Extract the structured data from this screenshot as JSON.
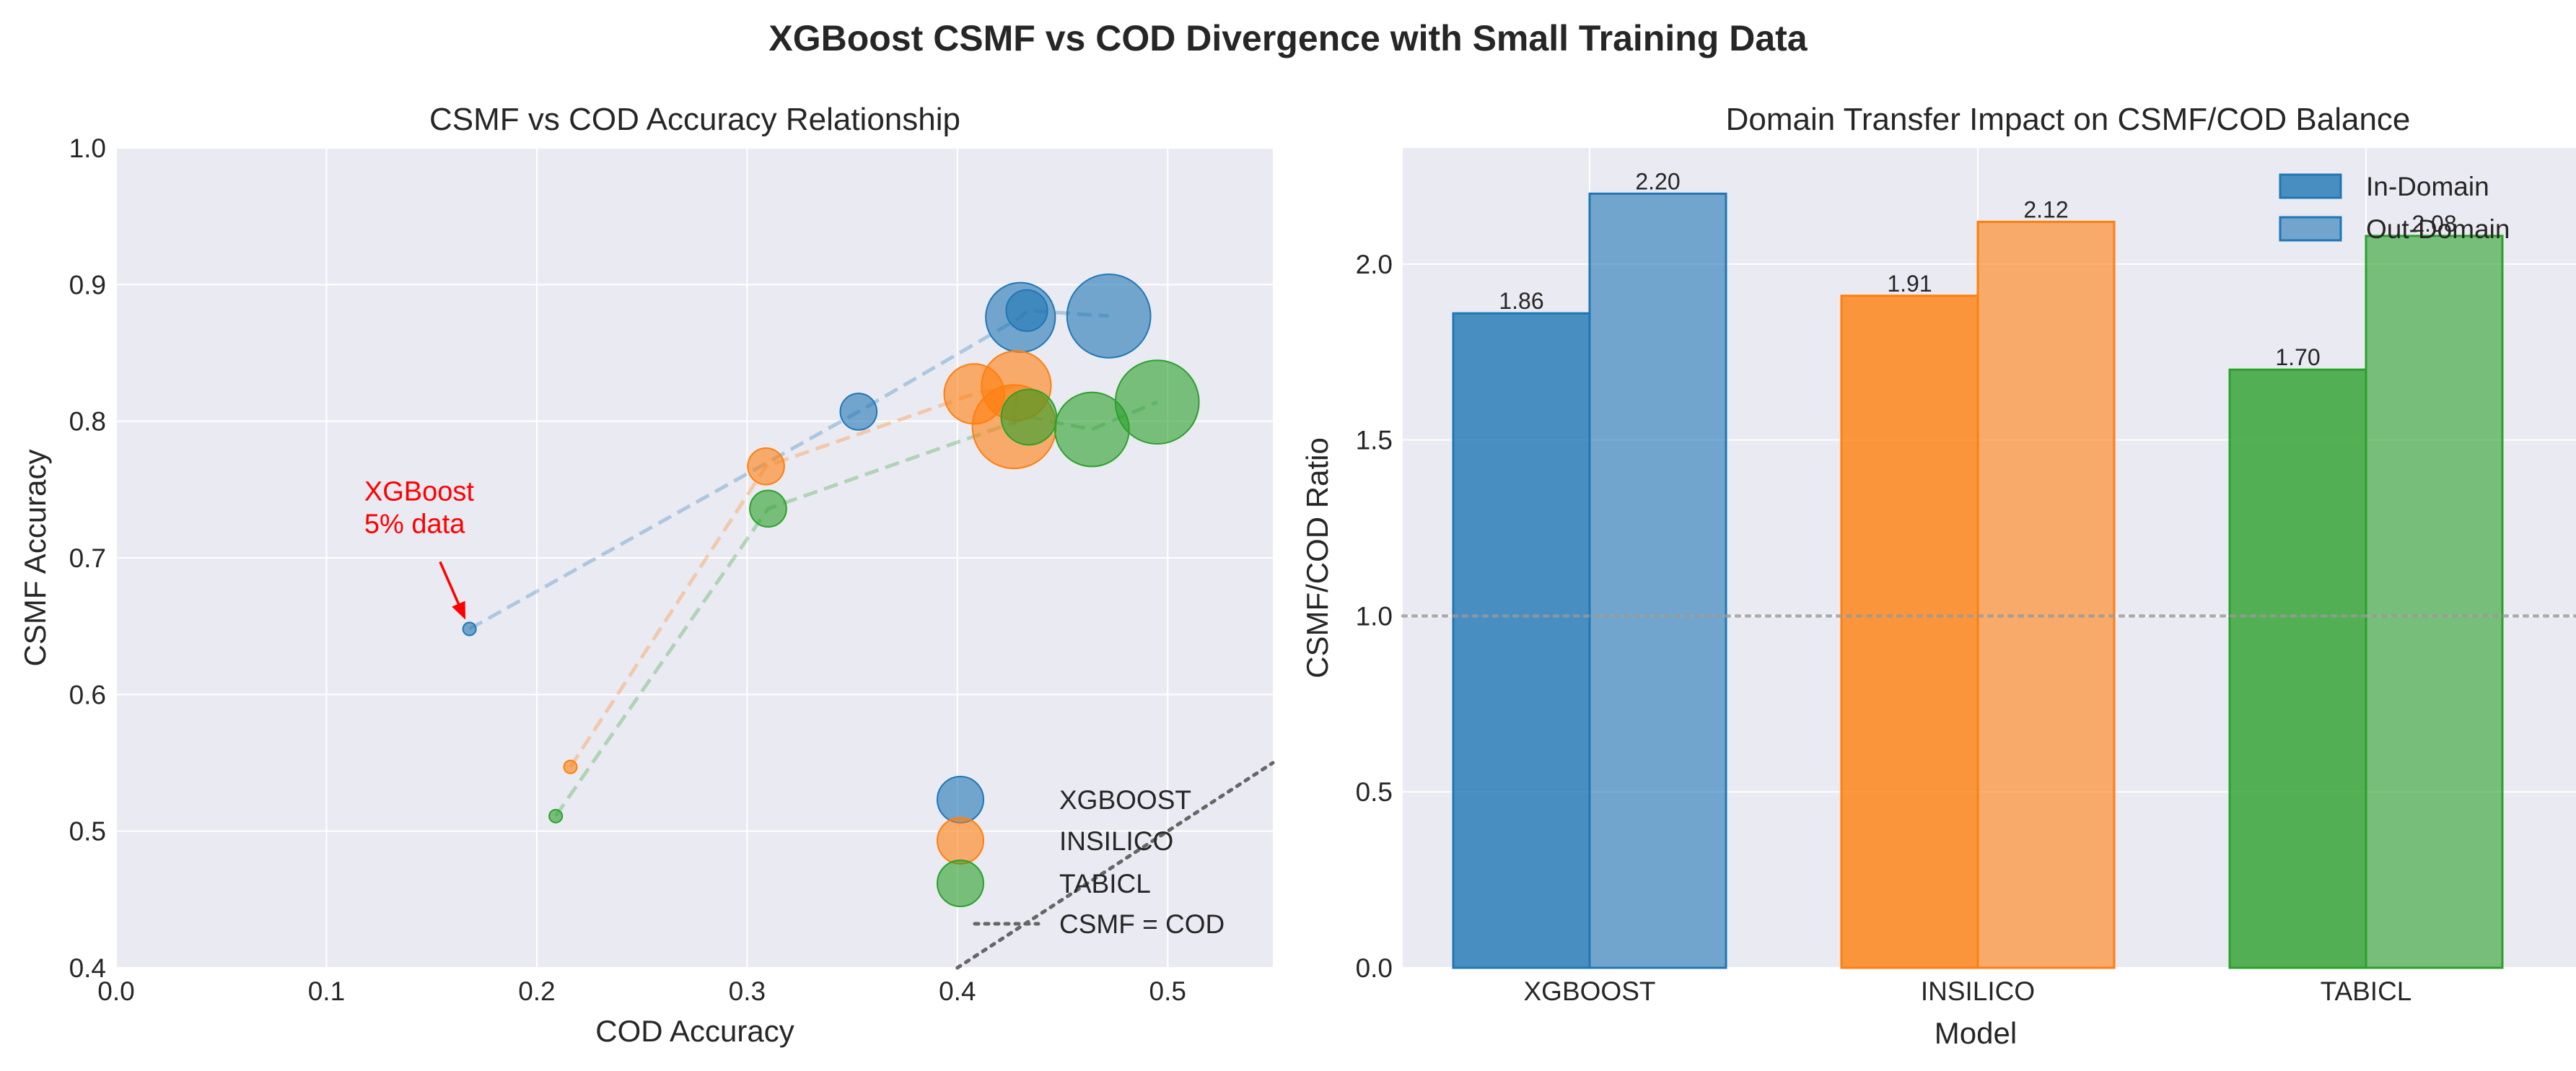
{
  "suptitle": "XGBoost CSMF vs COD Divergence with Small Training Data",
  "chart_data": [
    {
      "type": "scatter",
      "title": "CSMF vs COD Accuracy Relationship",
      "xlabel": "COD Accuracy",
      "ylabel": "CSMF Accuracy",
      "xlim": [
        0,
        0.55
      ],
      "ylim": [
        0.4,
        1.0
      ],
      "xticks": [
        "0.0",
        "0.1",
        "0.2",
        "0.3",
        "0.4",
        "0.5"
      ],
      "yticks": [
        "0.4",
        "0.5",
        "0.6",
        "0.7",
        "0.8",
        "0.9",
        "1.0"
      ],
      "grid": true,
      "legend_position": "lower-right",
      "marker_size_note": "",
      "series": [
        {
          "name": "XGBOOST",
          "color": "#1f77b4",
          "points": [
            {
              "x": 0.168,
              "y": 0.648,
              "size": 1
            },
            {
              "x": 0.353,
              "y": 0.807,
              "size": 2
            },
            {
              "x": 0.43,
              "y": 0.876,
              "size": 3.4
            },
            {
              "x": 0.433,
              "y": 0.881,
              "size": 2.2
            },
            {
              "x": 0.472,
              "y": 0.877,
              "size": 4
            }
          ]
        },
        {
          "name": "INSILICO",
          "color": "#ff7f0e",
          "points": [
            {
              "x": 0.216,
              "y": 0.547,
              "size": 1
            },
            {
              "x": 0.309,
              "y": 0.767,
              "size": 2
            },
            {
              "x": 0.408,
              "y": 0.82,
              "size": 3
            },
            {
              "x": 0.428,
              "y": 0.826,
              "size": 3.4
            },
            {
              "x": 0.427,
              "y": 0.796,
              "size": 4
            }
          ]
        },
        {
          "name": "TABICL",
          "color": "#2ca02c",
          "points": [
            {
              "x": 0.209,
              "y": 0.511,
              "size": 1
            },
            {
              "x": 0.31,
              "y": 0.736,
              "size": 2
            },
            {
              "x": 0.434,
              "y": 0.803,
              "size": 2.8
            },
            {
              "x": 0.464,
              "y": 0.794,
              "size": 3.6
            },
            {
              "x": 0.495,
              "y": 0.814,
              "size": 4
            }
          ]
        }
      ],
      "reference_line": {
        "name": "CSMF = COD",
        "slope": 1,
        "intercept": 0
      },
      "annotation": {
        "lines": [
          "XGBoost",
          "5% data"
        ],
        "target": {
          "x": 0.168,
          "y": 0.648
        },
        "text_at": {
          "x": 0.118,
          "y": 0.742
        },
        "color": "#ff0000"
      }
    },
    {
      "type": "bar",
      "title": "Domain Transfer Impact on CSMF/COD Balance",
      "xlabel": "Model",
      "ylabel": "CSMF/COD Ratio",
      "categories": [
        "XGBOOST",
        "INSILICO",
        "TABICL"
      ],
      "ylim": [
        0,
        2.33
      ],
      "yticks": [
        "0.0",
        "0.5",
        "1.0",
        "1.5",
        "2.0"
      ],
      "grid": true,
      "legend_position": "top-right",
      "reference_line": {
        "y": 1.0
      },
      "category_colors": [
        "#1f77b4",
        "#ff7f0e",
        "#2ca02c"
      ],
      "series": [
        {
          "name": "In-Domain",
          "values": [
            1.86,
            1.91,
            1.7
          ],
          "labels": [
            "1.86",
            "1.91",
            "1.70"
          ]
        },
        {
          "name": "Out-Domain",
          "values": [
            2.2,
            2.12,
            2.08
          ],
          "labels": [
            "2.20",
            "2.12",
            "2.08"
          ]
        }
      ]
    }
  ]
}
